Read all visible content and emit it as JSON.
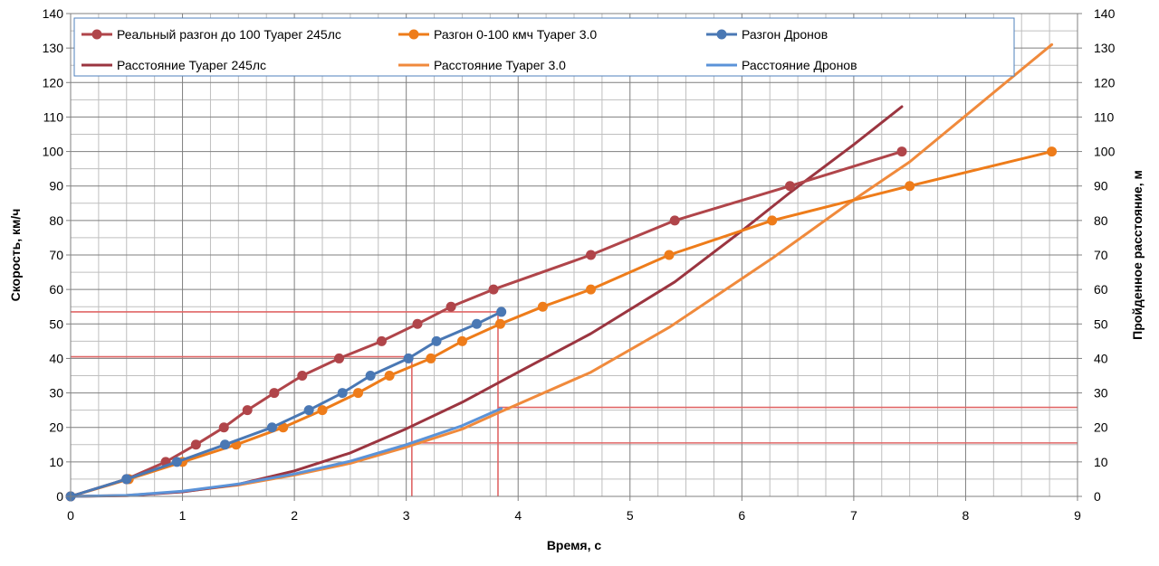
{
  "chart_data": {
    "type": "line",
    "xlabel": "Время, с",
    "ylabel": "Скорость, км/ч",
    "y2label": "Пройденное расстояние, м",
    "xlim": [
      0,
      9
    ],
    "ylim": [
      0,
      140
    ],
    "y2lim": [
      0,
      140
    ],
    "x_ticks": [
      "0",
      "1",
      "2",
      "3",
      "4",
      "5",
      "6",
      "7",
      "8",
      "9"
    ],
    "y_ticks": [
      "0",
      "10",
      "20",
      "30",
      "40",
      "50",
      "60",
      "70",
      "80",
      "90",
      "100",
      "110",
      "120",
      "130",
      "140"
    ],
    "y2_ticks": [
      "0",
      "10",
      "20",
      "30",
      "40",
      "50",
      "60",
      "70",
      "80",
      "90",
      "100",
      "110",
      "120",
      "130",
      "140"
    ],
    "grid": true,
    "legend_position": "top",
    "series": [
      {
        "name": "Реальный разгон до 100 Туарег 245лс",
        "axis": "left",
        "color": "#B0454A",
        "markers": true,
        "x": [
          0,
          0.5,
          0.85,
          1.12,
          1.37,
          1.58,
          1.82,
          2.07,
          2.4,
          2.78,
          3.1,
          3.4,
          3.78,
          4.65,
          5.4,
          6.43,
          7.43
        ],
        "y": [
          0,
          5,
          10,
          15,
          20,
          25,
          30,
          35,
          40,
          45,
          50,
          55,
          60,
          70,
          80,
          90,
          100
        ]
      },
      {
        "name": "Разгон 0-100 кмч Туарег 3.0",
        "axis": "left",
        "color": "#EE7C1A",
        "markers": true,
        "x": [
          0,
          0.52,
          1.0,
          1.48,
          1.9,
          2.25,
          2.57,
          2.85,
          3.22,
          3.5,
          3.84,
          4.22,
          4.65,
          5.35,
          6.27,
          7.5,
          8.77
        ],
        "y": [
          0,
          5,
          10,
          15,
          20,
          25,
          30,
          35,
          40,
          45,
          50,
          55,
          60,
          70,
          80,
          90,
          100
        ]
      },
      {
        "name": "Разгон Дронов",
        "axis": "left",
        "color": "#4A78B4",
        "markers": true,
        "x": [
          0,
          0.5,
          0.95,
          1.38,
          1.8,
          2.13,
          2.43,
          2.68,
          3.02,
          3.27,
          3.63,
          3.85
        ],
        "y": [
          0,
          5,
          10,
          15,
          20,
          25,
          30,
          35,
          40,
          45,
          50,
          53.5
        ]
      },
      {
        "name": "Расстояние Туарег 245лс",
        "axis": "right",
        "color": "#9B3540",
        "markers": false,
        "x": [
          0,
          0.5,
          1.0,
          1.5,
          2.0,
          2.5,
          3.0,
          3.5,
          4.0,
          4.65,
          5.4,
          6.0,
          6.43,
          7.0,
          7.43
        ],
        "y": [
          0,
          0.2,
          1.3,
          3.5,
          7.4,
          12.6,
          19.6,
          27.3,
          36.0,
          47.2,
          62.2,
          77.0,
          88.1,
          102,
          113
        ]
      },
      {
        "name": "Расстояние Туарег 3.0",
        "axis": "right",
        "color": "#F08A3C",
        "markers": false,
        "x": [
          0,
          0.5,
          1.0,
          1.5,
          2.0,
          2.5,
          3.0,
          3.5,
          3.84,
          4.65,
          5.35,
          6.27,
          7.0,
          7.5,
          8.77
        ],
        "y": [
          0,
          0.3,
          1.4,
          3.3,
          6.2,
          9.6,
          14.3,
          19.5,
          24.5,
          36.0,
          49.0,
          69.0,
          86.0,
          97.0,
          131
        ]
      },
      {
        "name": "Расстояние Дронов",
        "axis": "right",
        "color": "#5B93D8",
        "markers": false,
        "x": [
          0,
          0.5,
          1.0,
          1.5,
          2.0,
          2.5,
          3.0,
          3.5,
          3.85
        ],
        "y": [
          0,
          0.3,
          1.5,
          3.6,
          6.5,
          10.2,
          15.0,
          20.5,
          25.5
        ]
      }
    ],
    "reference_lines": [
      {
        "orientation": "horizontal",
        "axis": "left",
        "value": 53.5,
        "x_from": 0,
        "x_to": 3.85,
        "color": "#E06666"
      },
      {
        "orientation": "horizontal",
        "axis": "left",
        "value": 40.5,
        "x_from": 0,
        "x_to": 3.05,
        "color": "#E06666"
      },
      {
        "orientation": "vertical",
        "value": 3.05,
        "y_from": 0,
        "y_to": 40.5,
        "color": "#E06666"
      },
      {
        "orientation": "vertical",
        "value": 3.82,
        "y_from": 0,
        "y_to": 53.5,
        "color": "#E06666"
      },
      {
        "orientation": "horizontal",
        "axis": "right",
        "value": 25.8,
        "x_from": 3.82,
        "x_to": 9,
        "color": "#E06666"
      },
      {
        "orientation": "horizontal",
        "axis": "right",
        "value": 15.5,
        "x_from": 3.05,
        "x_to": 9,
        "color": "#E06666"
      }
    ]
  }
}
